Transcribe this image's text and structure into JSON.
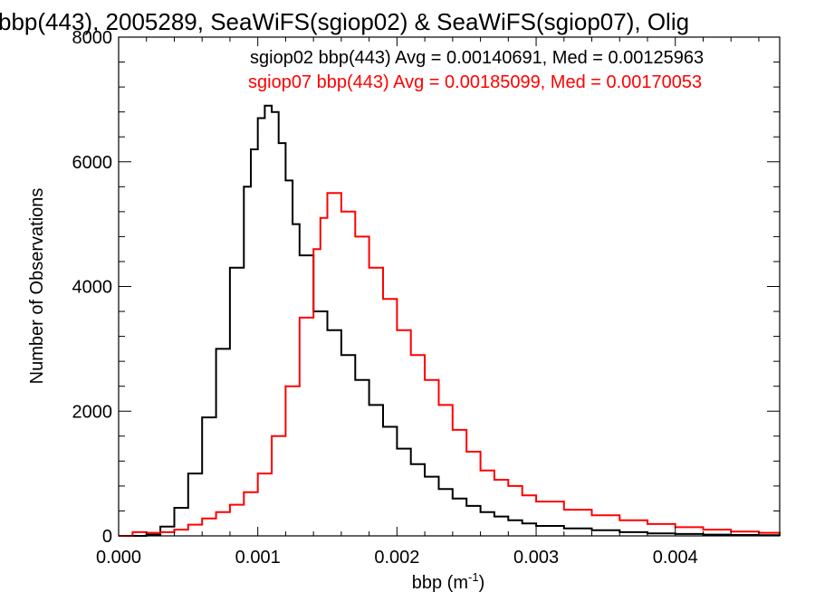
{
  "chart_data": {
    "type": "line",
    "title": "bbp(443), 2005289, SeaWiFS(sgiop02) & SeaWiFS(sgiop07), Olig",
    "xlabel": "bbp (m",
    "xlabel_sup": "-1",
    "xlabel_close": ")",
    "ylabel": "Number of Observations",
    "xlim": [
      0.0,
      0.00475
    ],
    "ylim": [
      0,
      8000
    ],
    "xticks": [
      0.0,
      0.001,
      0.002,
      0.003,
      0.004
    ],
    "xtick_labels": [
      "0.000",
      "0.001",
      "0.002",
      "0.003",
      "0.004"
    ],
    "yticks": [
      0,
      2000,
      4000,
      6000,
      8000
    ],
    "ytick_labels": [
      "0",
      "2000",
      "4000",
      "6000",
      "8000"
    ],
    "grid": false,
    "series": [
      {
        "name": "sgiop02",
        "color": "#000000",
        "legend_text": "sgiop02 bbp(443) Avg = 0.00140691, Med = 0.00125963",
        "x": [
          0.0,
          0.0001,
          0.0002,
          0.0003,
          0.0004,
          0.0005,
          0.0006,
          0.0007,
          0.0008,
          0.0009,
          0.00095,
          0.001,
          0.00105,
          0.0011,
          0.00115,
          0.0012,
          0.00125,
          0.0013,
          0.0014,
          0.0015,
          0.0016,
          0.0017,
          0.0018,
          0.0019,
          0.002,
          0.0021,
          0.0022,
          0.0023,
          0.0024,
          0.0025,
          0.0026,
          0.0027,
          0.0028,
          0.0029,
          0.003,
          0.0032,
          0.0034,
          0.0036,
          0.0038,
          0.004,
          0.0042,
          0.0044,
          0.0046,
          0.00475
        ],
        "y": [
          0,
          0,
          20,
          150,
          450,
          1000,
          1900,
          3000,
          4300,
          5600,
          6200,
          6700,
          6900,
          6800,
          6300,
          5700,
          5000,
          4500,
          3600,
          3300,
          2900,
          2500,
          2100,
          1750,
          1400,
          1150,
          950,
          750,
          600,
          480,
          380,
          310,
          250,
          200,
          160,
          120,
          90,
          60,
          40,
          30,
          20,
          15,
          10,
          5
        ]
      },
      {
        "name": "sgiop07",
        "color": "#ff0000",
        "legend_text": "sgiop07 bbp(443) Avg = 0.00185099, Med = 0.00170053",
        "x": [
          0.0,
          0.0001,
          0.0002,
          0.0003,
          0.0004,
          0.0005,
          0.0006,
          0.0007,
          0.0008,
          0.0009,
          0.001,
          0.0011,
          0.0012,
          0.0013,
          0.0014,
          0.00145,
          0.0015,
          0.00155,
          0.0016,
          0.0017,
          0.0018,
          0.0019,
          0.002,
          0.0021,
          0.0022,
          0.0023,
          0.0024,
          0.0025,
          0.0026,
          0.0027,
          0.0028,
          0.0029,
          0.003,
          0.0032,
          0.0034,
          0.0036,
          0.0038,
          0.004,
          0.0042,
          0.0044,
          0.0046,
          0.00475
        ],
        "y": [
          0,
          60,
          50,
          60,
          100,
          180,
          280,
          380,
          500,
          700,
          1000,
          1600,
          2400,
          3500,
          4600,
          5100,
          5500,
          5500,
          5200,
          4800,
          4300,
          3800,
          3300,
          2900,
          2500,
          2100,
          1700,
          1350,
          1050,
          900,
          800,
          650,
          550,
          420,
          330,
          250,
          190,
          140,
          100,
          70,
          50,
          30
        ]
      }
    ]
  }
}
